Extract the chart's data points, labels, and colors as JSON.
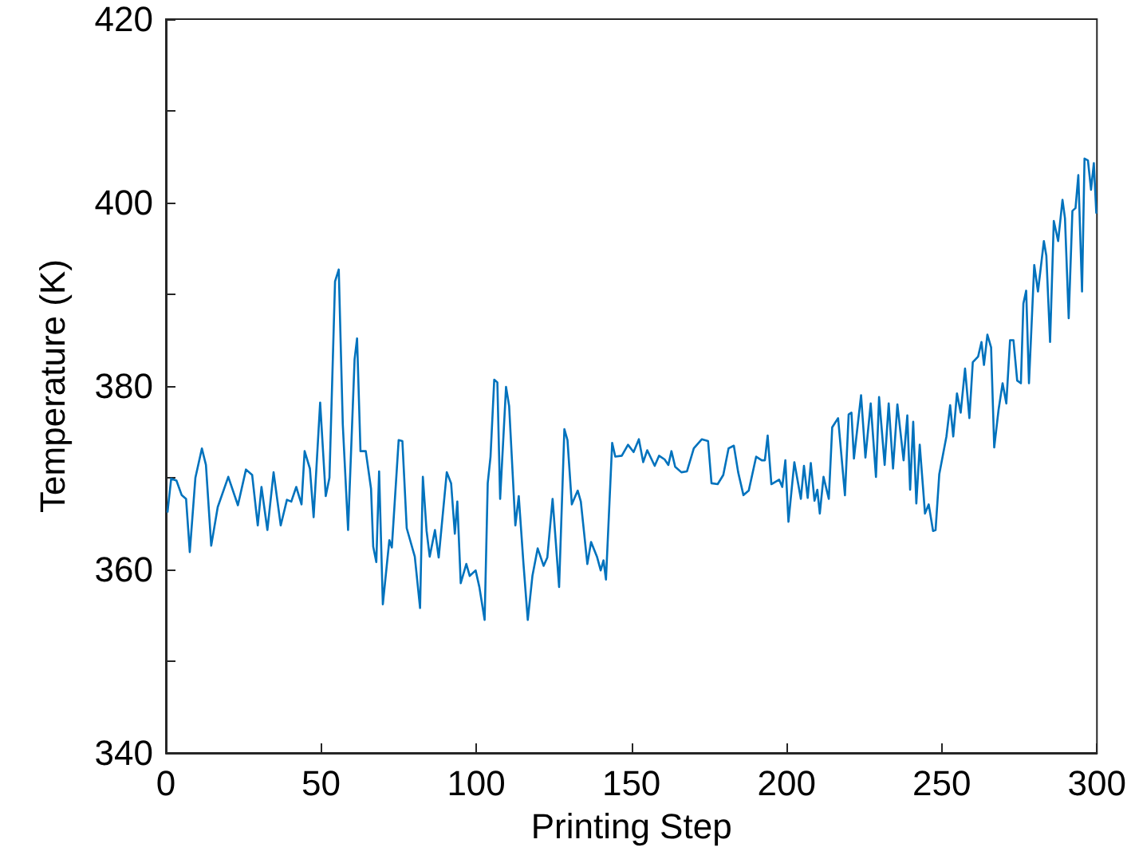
{
  "chart_data": {
    "type": "line",
    "xlabel": "Printing Step",
    "ylabel": "Temperature (K)",
    "xlim": [
      0,
      300
    ],
    "xticks": [
      0,
      50,
      100,
      150,
      200,
      250,
      300
    ],
    "ylim": [
      340,
      420
    ],
    "yticks": [
      340,
      {
        "value": 350,
        "label": null
      },
      360,
      {
        "value": 370,
        "label": null
      },
      380,
      {
        "value": 390,
        "label": null
      },
      400,
      {
        "value": 410,
        "label": null
      },
      420
    ],
    "grid": false,
    "marker": "none",
    "line_style": "solid",
    "series": [
      {
        "color": "#0072bd",
        "x": [
          0.5,
          1.7,
          3.4,
          5.1,
          6.5,
          7.7,
          9.5,
          11.6,
          12.9,
          14.6,
          16.7,
          20.1,
          23.2,
          25.8,
          27.8,
          29.6,
          30.8,
          32.7,
          34.7,
          37.0,
          39.0,
          40.4,
          42.0,
          43.7,
          44.7,
          46.4,
          47.6,
          49.7,
          51.5,
          52.7,
          54.5,
          55.7,
          57.0,
          58.7,
          60.8,
          61.6,
          62.7,
          64.4,
          66.1,
          66.8,
          67.8,
          68.7,
          69.9,
          72.0,
          72.8,
          75.0,
          76.2,
          77.6,
          80.2,
          81.9,
          82.8,
          84.0,
          85.0,
          86.7,
          87.9,
          90.5,
          91.9,
          93.1,
          93.9,
          95.0,
          96.8,
          97.9,
          99.8,
          101.0,
          102.7,
          103.7,
          104.6,
          105.8,
          106.8,
          107.7,
          109.6,
          110.6,
          112.6,
          113.7,
          115.2,
          116.6,
          118.1,
          119.8,
          121.7,
          122.9,
          124.6,
          126.7,
          128.4,
          129.4,
          130.8,
          132.7,
          133.7,
          135.8,
          137.0,
          138.9,
          140.1,
          141.0,
          141.8,
          143.8,
          144.8,
          146.9,
          148.9,
          150.7,
          152.4,
          153.8,
          155.1,
          157.5,
          158.9,
          160.7,
          161.9,
          162.9,
          164.1,
          166.1,
          167.9,
          170.1,
          172.7,
          174.7,
          175.8,
          177.8,
          179.6,
          181.3,
          183.0,
          184.4,
          186.1,
          187.8,
          190.2,
          192.0,
          193.0,
          193.9,
          195.1,
          197.6,
          198.6,
          199.6,
          200.6,
          202.5,
          204.6,
          205.6,
          206.8,
          207.8,
          209.0,
          209.9,
          210.7,
          211.9,
          213.6,
          214.7,
          216.6,
          218.8,
          220.0,
          220.9,
          221.7,
          224.0,
          225.4,
          227.1,
          228.8,
          229.8,
          231.6,
          232.9,
          234.3,
          235.7,
          237.7,
          238.9,
          239.8,
          240.8,
          241.8,
          242.9,
          244.6,
          245.8,
          247.2,
          248.0,
          249.2,
          251.5,
          252.7,
          253.7,
          254.9,
          256.1,
          257.5,
          258.9,
          260.0,
          261.7,
          262.8,
          263.6,
          264.7,
          265.9,
          266.9,
          268.3,
          269.6,
          270.8,
          272.0,
          273.1,
          274.3,
          275.5,
          276.3,
          277.2,
          278.1,
          279.8,
          281.0,
          282.9,
          283.7,
          284.9,
          286.1,
          287.5,
          288.9,
          289.7,
          290.9,
          292.1,
          293.1,
          294.0,
          295.2,
          296.0,
          297.1,
          298.1,
          299.0,
          299.8
        ],
        "values": [
          366.2,
          369.9,
          369.7,
          368.1,
          367.7,
          361.9,
          370.0,
          373.2,
          371.4,
          362.6,
          366.8,
          370.1,
          367.0,
          370.9,
          370.3,
          364.8,
          369.0,
          364.3,
          370.6,
          364.8,
          367.6,
          367.4,
          369.0,
          367.1,
          372.9,
          371.0,
          365.7,
          378.2,
          368.0,
          370.0,
          391.4,
          392.7,
          375.8,
          364.3,
          382.9,
          385.2,
          372.9,
          372.9,
          368.8,
          362.5,
          360.8,
          370.7,
          356.2,
          363.2,
          362.4,
          374.1,
          374.0,
          364.5,
          361.4,
          355.8,
          370.1,
          364.2,
          361.4,
          364.3,
          361.3,
          370.6,
          369.4,
          363.9,
          367.4,
          358.5,
          360.6,
          359.3,
          359.9,
          358.1,
          354.5,
          369.4,
          372.3,
          380.7,
          380.4,
          367.7,
          379.9,
          377.8,
          364.8,
          368.0,
          360.7,
          354.5,
          359.3,
          362.3,
          360.4,
          361.3,
          367.7,
          358.1,
          375.3,
          374.1,
          367.1,
          368.6,
          367.4,
          360.6,
          363.0,
          361.4,
          359.9,
          361.0,
          358.9,
          373.8,
          372.3,
          372.4,
          373.6,
          372.8,
          374.2,
          371.7,
          373.0,
          371.3,
          372.4,
          372.0,
          371.4,
          372.9,
          371.2,
          370.6,
          370.7,
          373.2,
          374.2,
          374.0,
          369.4,
          369.3,
          370.3,
          373.2,
          373.5,
          370.6,
          368.1,
          368.6,
          372.3,
          371.9,
          371.9,
          374.6,
          369.3,
          369.8,
          369.0,
          371.9,
          365.2,
          371.7,
          367.7,
          371.3,
          367.8,
          371.6,
          367.5,
          368.7,
          366.1,
          370.1,
          367.7,
          375.5,
          376.5,
          368.1,
          376.9,
          377.1,
          372.1,
          379.0,
          372.2,
          378.1,
          370.1,
          378.8,
          371.4,
          378.1,
          371.0,
          378.0,
          371.9,
          376.8,
          368.7,
          376.1,
          367.2,
          373.6,
          366.1,
          367.1,
          364.2,
          364.3,
          370.4,
          374.5,
          377.9,
          374.5,
          379.2,
          377.1,
          381.9,
          376.5,
          382.6,
          383.2,
          384.8,
          382.3,
          385.6,
          384.2,
          373.3,
          377.4,
          380.3,
          378.1,
          385.0,
          385.0,
          380.6,
          380.3,
          389.0,
          390.4,
          380.3,
          393.2,
          390.3,
          395.8,
          394.2,
          384.8,
          398.0,
          395.8,
          400.3,
          398.3,
          387.4,
          399.1,
          399.4,
          403.0,
          390.3,
          404.8,
          404.6,
          401.4,
          404.3,
          398.8
        ]
      }
    ]
  }
}
